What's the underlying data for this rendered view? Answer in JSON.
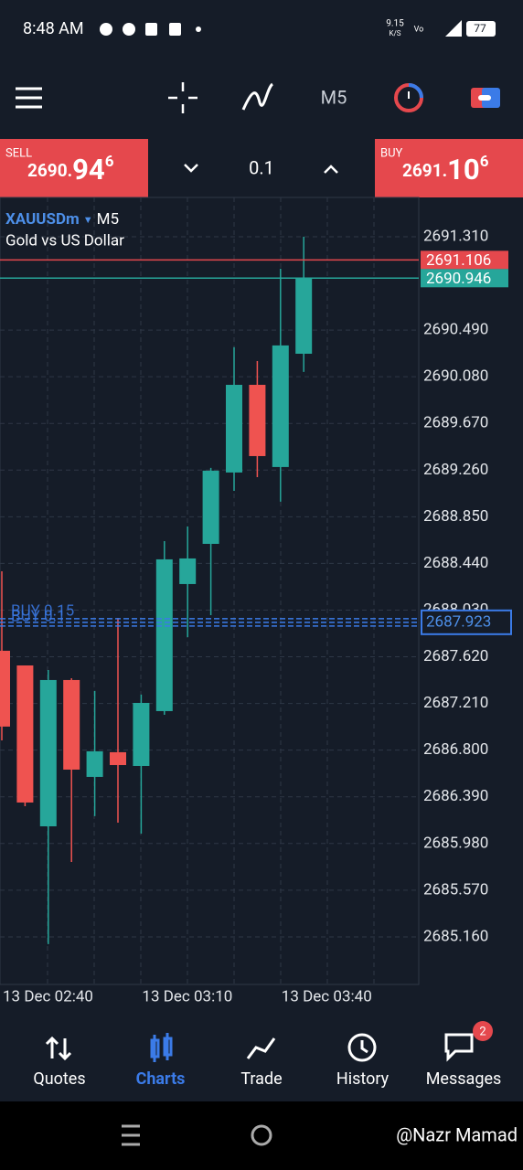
{
  "status_bar": {
    "time": "8:48 AM",
    "net_speed": "9.15",
    "net_unit": "K/S",
    "battery": "77"
  },
  "toolbar": {
    "timeframe": "M5"
  },
  "trade_panel": {
    "sell": {
      "label": "SELL",
      "price_prefix": "2690.",
      "price_big": "94",
      "price_sup": "6"
    },
    "volume": "0.1",
    "buy": {
      "label": "BUY",
      "price_prefix": "2691.",
      "price_big": "10",
      "price_sup": "6"
    }
  },
  "chart_data": {
    "type": "candlestick",
    "symbol": "XAUUSDm",
    "timeframe": "M5",
    "description": "Gold vs US Dollar",
    "categories": [
      "13 Dec 02:40",
      null,
      null,
      null,
      null,
      null,
      "13 Dec 03:10",
      null,
      null,
      null,
      null,
      null,
      "13 Dec 03:40",
      null
    ],
    "up_color": "#26a69a",
    "down_color": "#ef5350",
    "series": [
      {
        "open": [
          2687.673,
          2687.544,
          2686.131,
          2687.416,
          2686.565,
          2686.782,
          2686.661,
          2687.143,
          2688.259,
          2688.612,
          2689.239,
          2690.009,
          2689.287,
          2690.282
        ],
        "high": [
          2688.371,
          2687.544,
          2687.504,
          2687.432,
          2687.32,
          2687.962,
          2687.288,
          2688.636,
          2688.765,
          2689.279,
          2690.339,
          2690.218,
          2691.029,
          2691.31
        ],
        "low": [
          2686.886,
          2686.308,
          2685.096,
          2685.818,
          2686.22,
          2686.163,
          2686.067,
          2687.111,
          2687.793,
          2687.986,
          2689.078,
          2689.198,
          2688.982,
          2690.122
        ],
        "close": [
          2687.007,
          2686.34,
          2687.416,
          2686.629,
          2686.79,
          2686.669,
          2687.215,
          2688.476,
          2688.484,
          2689.255,
          2690.009,
          2689.383,
          2690.355,
          2690.946
        ]
      }
    ],
    "ylim": [
      2684.742,
      2691.655
    ],
    "yticks": [
      {
        "value": 2691.31,
        "label": "2691.310"
      },
      {
        "value": 2690.49,
        "label": "2690.490"
      },
      {
        "value": 2690.08,
        "label": "2690.080"
      },
      {
        "value": 2689.67,
        "label": "2689.670"
      },
      {
        "value": 2689.26,
        "label": "2689.260"
      },
      {
        "value": 2688.85,
        "label": "2688.850"
      },
      {
        "value": 2688.44,
        "label": "2688.440"
      },
      {
        "value": 2688.03,
        "label": "2688.030"
      },
      {
        "value": 2687.62,
        "label": "2687.620"
      },
      {
        "value": 2687.21,
        "label": "2687.210"
      },
      {
        "value": 2686.8,
        "label": "2686.800"
      },
      {
        "value": 2686.39,
        "label": "2686.390"
      },
      {
        "value": 2685.98,
        "label": "2685.980"
      },
      {
        "value": 2685.57,
        "label": "2685.570"
      },
      {
        "value": 2685.16,
        "label": "2685.160"
      }
    ],
    "grid": true,
    "price_lines": [
      {
        "value": 2691.106,
        "color": "#e5484d",
        "style": "solid"
      },
      {
        "value": 2690.946,
        "color": "#26a69a",
        "style": "solid"
      },
      {
        "value": 2687.923,
        "color": "#3b7be8",
        "style": "dashed"
      }
    ],
    "position_labels": [
      "BUY 0.15",
      "BUY 0.1"
    ]
  },
  "bottom_nav": {
    "tabs": [
      "Quotes",
      "Charts",
      "Trade",
      "History",
      "Messages"
    ],
    "messages_badge": "2"
  },
  "watermark": "@Nazr Mamad"
}
